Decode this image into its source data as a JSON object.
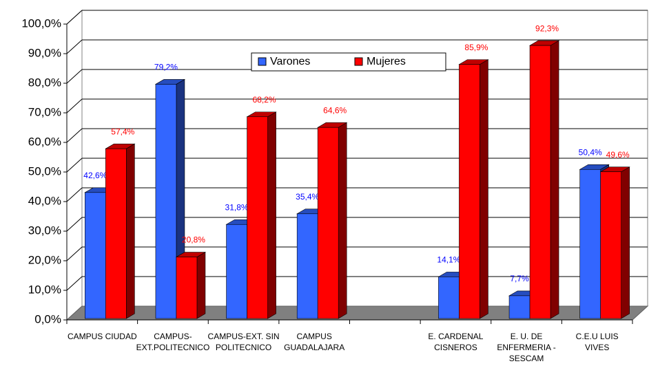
{
  "chart_data": {
    "type": "bar3d",
    "categories": [
      "CAMPUS CIUDAD",
      "CAMPUS- EXT.POLITECNICO",
      "CAMPUS-EXT. SIN POLITECNICO",
      "CAMPUS GUADALAJARA",
      null,
      "E. CARDENAL CISNEROS",
      "E. U. DE ENFERMERIA - SESCAM",
      "C.E.U LUIS VIVES"
    ],
    "series": [
      {
        "name": "Varones",
        "color": "#3366ff",
        "values": [
          42.6,
          79.2,
          31.8,
          35.4,
          null,
          14.1,
          7.7,
          50.4
        ],
        "value_labels": [
          "42,6%",
          "79,2%",
          "31,8%",
          "35,4%",
          null,
          "14,1%",
          "7,7%",
          "50,4%"
        ]
      },
      {
        "name": "Mujeres",
        "color": "#ff0000",
        "values": [
          57.4,
          20.8,
          68.2,
          64.6,
          null,
          85.9,
          92.3,
          49.6
        ],
        "value_labels": [
          "57,4%",
          "20,8%",
          "68,2%",
          "64,6%",
          null,
          "85,9%",
          "92,3%",
          "49,6%"
        ]
      }
    ],
    "ylim": [
      0,
      100
    ],
    "yticks": [
      {
        "value": 0,
        "label": "0,0%"
      },
      {
        "value": 10,
        "label": "10,0%"
      },
      {
        "value": 20,
        "label": "20,0%"
      },
      {
        "value": 30,
        "label": "30,0%"
      },
      {
        "value": 40,
        "label": "40,0%"
      },
      {
        "value": 50,
        "label": "50,0%"
      },
      {
        "value": 60,
        "label": "60,0%"
      },
      {
        "value": 70,
        "label": "70,0%"
      },
      {
        "value": 80,
        "label": "80,0%"
      },
      {
        "value": 90,
        "label": "90,0%"
      },
      {
        "value": 100,
        "label": "100,0%"
      }
    ],
    "grid": true,
    "legend": "top"
  }
}
